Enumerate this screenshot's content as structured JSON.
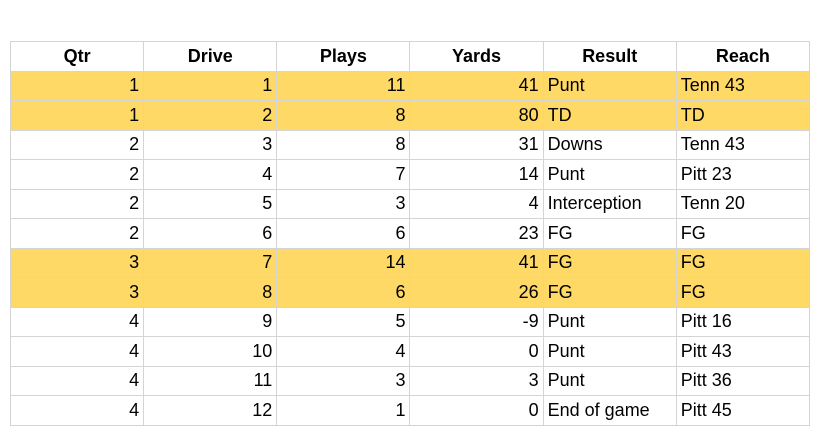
{
  "table": {
    "header": [
      "Qtr",
      "Drive",
      "Plays",
      "Yards",
      "Result",
      "Reach"
    ],
    "rows": [
      {
        "cells": [
          1,
          1,
          11,
          41,
          "Punt",
          "Tenn 43"
        ],
        "fill": "#ffd966"
      },
      {
        "cells": [
          1,
          2,
          8,
          80,
          "TD",
          "TD"
        ],
        "fill": "#ffd966"
      },
      {
        "cells": [
          2,
          3,
          8,
          31,
          "Downs",
          "Tenn 43"
        ],
        "fill": "#ffffff"
      },
      {
        "cells": [
          2,
          4,
          7,
          14,
          "Punt",
          "Pitt 23"
        ],
        "fill": "#ffffff"
      },
      {
        "cells": [
          2,
          5,
          3,
          4,
          "Interception",
          "Tenn 20"
        ],
        "fill": "#ffffff"
      },
      {
        "cells": [
          2,
          6,
          6,
          23,
          "FG",
          "FG"
        ],
        "fill": "#ffffff"
      },
      {
        "cells": [
          3,
          7,
          14,
          41,
          "FG",
          "FG"
        ],
        "fill": "#ffd966"
      },
      {
        "cells": [
          3,
          8,
          6,
          26,
          "FG",
          "FG"
        ],
        "fill": "#ffd966"
      },
      {
        "cells": [
          4,
          9,
          5,
          -9,
          "Punt",
          "Pitt 16"
        ],
        "fill": "#ffffff"
      },
      {
        "cells": [
          4,
          10,
          4,
          0,
          "Punt",
          "Pitt 43"
        ],
        "fill": "#ffffff"
      },
      {
        "cells": [
          4,
          11,
          3,
          3,
          "Punt",
          "Pitt 36"
        ],
        "fill": "#ffffff"
      },
      {
        "cells": [
          4,
          12,
          1,
          0,
          "End of game",
          "Pitt 45"
        ],
        "fill": "#ffffff"
      }
    ]
  }
}
